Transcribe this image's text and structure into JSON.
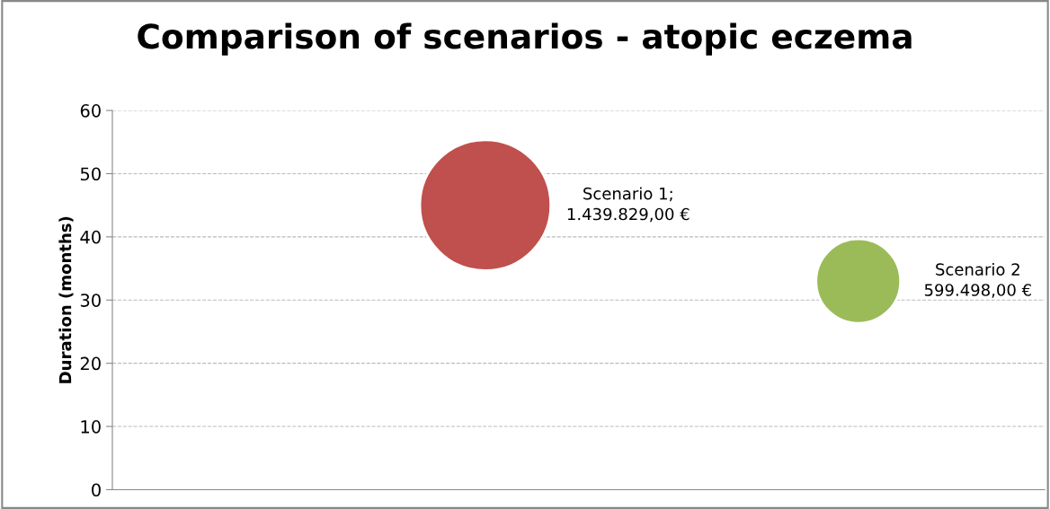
{
  "chart_data": {
    "type": "bubble",
    "title": "Comparison of scenarios - atopic eczema",
    "ylabel": "Duration (months)",
    "categories": [
      null,
      null
    ],
    "values": [
      45,
      33
    ],
    "sizes": [
      1,
      0.416
    ],
    "colors": [
      "#c0504d",
      "#9bbb59"
    ],
    "value_labels": [
      "Scenario 1;\n1.439.829,00 €",
      "Scenario 2\n599.498,00 €"
    ],
    "ylim": [
      0,
      60
    ],
    "yticks": [
      0,
      10,
      20,
      30,
      40,
      50,
      60
    ],
    "grid": "y",
    "legend": false
  }
}
